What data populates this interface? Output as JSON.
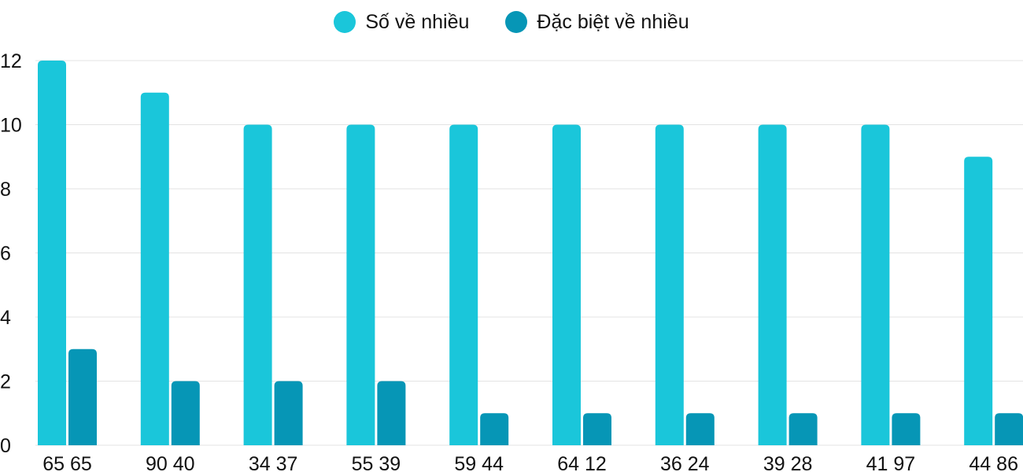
{
  "legend": {
    "series_1": "Số về nhiều",
    "series_2": "Đặc biệt về nhiều"
  },
  "colors": {
    "series_1": "#1ac6da",
    "series_2": "#0696b6"
  },
  "chart_data": {
    "type": "bar",
    "title": "",
    "xlabel": "",
    "ylabel": "",
    "ylim": [
      0,
      12
    ],
    "yticks": [
      0,
      2,
      4,
      6,
      8,
      10,
      12
    ],
    "grid": true,
    "legend_position": "top-center",
    "categories": [
      "65 65",
      "90 40",
      "34 37",
      "55 39",
      "59 44",
      "64 12",
      "36 24",
      "39 28",
      "41 97",
      "44 86"
    ],
    "series": [
      {
        "name": "Số về nhiều",
        "values": [
          12,
          11,
          10,
          10,
          10,
          10,
          10,
          10,
          10,
          9
        ]
      },
      {
        "name": "Đặc biệt về nhiều",
        "values": [
          3,
          2,
          2,
          2,
          1,
          1,
          1,
          1,
          1,
          1
        ]
      }
    ]
  }
}
